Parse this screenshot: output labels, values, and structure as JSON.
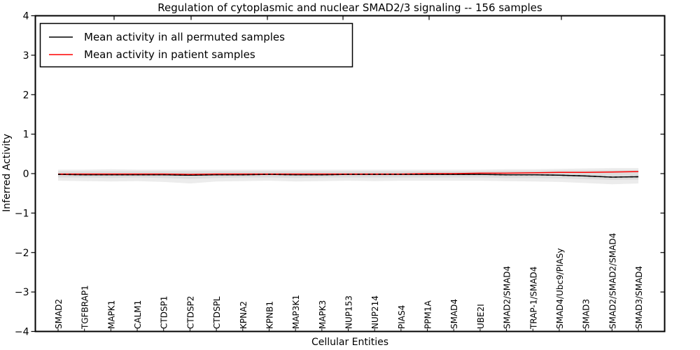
{
  "figure": {
    "title": "Regulation of cytoplasmic and nuclear SMAD2/3 signaling -- 156 samples",
    "xlabel": "Cellular Entities",
    "ylabel": "Inferred Activity",
    "background_color": "#ffffff",
    "frame_color": "#000000"
  },
  "legend": {
    "items": [
      {
        "label": "Mean activity in all permuted samples",
        "color": "#000000",
        "line_style": "solid"
      },
      {
        "label": "Mean activity in patient samples",
        "color": "#ff0000",
        "line_style": "solid"
      }
    ],
    "position": "upper left",
    "border_color": "#000000",
    "background_color": "#ffffff"
  },
  "axes": {
    "y_tick_labels": [
      "4",
      "3",
      "2",
      "1",
      "0",
      "−1",
      "−2",
      "−3",
      "−4"
    ]
  },
  "chart_data": {
    "type": "line",
    "title": "Regulation of cytoplasmic and nuclear SMAD2/3 signaling -- 156 samples",
    "xlabel": "Cellular Entities",
    "ylabel": "Inferred Activity",
    "ylim": [
      -4,
      4
    ],
    "yticks": [
      4,
      3,
      2,
      1,
      0,
      -1,
      -2,
      -3,
      -4
    ],
    "grid": false,
    "legend_position": "upper left",
    "categories": [
      "SMAD2",
      "TGFBRAP1",
      "MAPK1",
      "CALM1",
      "CTDSP1",
      "CTDSP2",
      "CTDSPL",
      "KPNA2",
      "KPNB1",
      "MAP3K1",
      "MAPK3",
      "NUP153",
      "NUP214",
      "PIAS4",
      "PPM1A",
      "SMAD4",
      "UBE2I",
      "SMAD2/SMAD4",
      "TRAP-1/SMAD4",
      "SMAD4/Ubc9/PIASy",
      "SMAD3",
      "SMAD2/SMAD2/SMAD4",
      "SMAD3/SMAD4"
    ],
    "series": [
      {
        "name": "Mean activity in all permuted samples",
        "color": "#000000",
        "values": [
          -0.02,
          -0.03,
          -0.03,
          -0.03,
          -0.03,
          -0.04,
          -0.03,
          -0.03,
          -0.02,
          -0.03,
          -0.03,
          -0.02,
          -0.02,
          -0.02,
          -0.02,
          -0.02,
          -0.02,
          -0.03,
          -0.03,
          -0.04,
          -0.06,
          -0.09,
          -0.08
        ]
      },
      {
        "name": "Mean activity in patient samples",
        "color": "#ff0000",
        "values": [
          -0.01,
          -0.01,
          -0.01,
          -0.01,
          -0.01,
          -0.02,
          -0.01,
          -0.01,
          -0.01,
          -0.01,
          -0.01,
          -0.01,
          -0.01,
          -0.01,
          0.0,
          0.0,
          0.01,
          0.01,
          0.02,
          0.03,
          0.03,
          0.04,
          0.05
        ]
      }
    ],
    "bands": [
      {
        "name": "outer-uncertainty-band",
        "color": "#ececec",
        "upper": [
          0.1,
          0.1,
          0.11,
          0.1,
          0.1,
          0.1,
          0.1,
          0.1,
          0.1,
          0.1,
          0.1,
          0.1,
          0.1,
          0.1,
          0.1,
          0.1,
          0.1,
          0.11,
          0.11,
          0.12,
          0.13,
          0.14,
          0.14
        ],
        "lower": [
          -0.18,
          -0.19,
          -0.2,
          -0.19,
          -0.21,
          -0.25,
          -0.2,
          -0.19,
          -0.18,
          -0.2,
          -0.19,
          -0.18,
          -0.19,
          -0.18,
          -0.18,
          -0.18,
          -0.18,
          -0.19,
          -0.2,
          -0.21,
          -0.24,
          -0.27,
          -0.25
        ]
      },
      {
        "name": "inner-uncertainty-band",
        "color": "#dcdcdc",
        "upper": [
          0.06,
          0.06,
          0.06,
          0.06,
          0.06,
          0.06,
          0.06,
          0.06,
          0.06,
          0.06,
          0.06,
          0.06,
          0.06,
          0.06,
          0.06,
          0.06,
          0.06,
          0.07,
          0.07,
          0.08,
          0.08,
          0.09,
          0.09
        ],
        "lower": [
          -0.1,
          -0.1,
          -0.11,
          -0.1,
          -0.11,
          -0.13,
          -0.11,
          -0.1,
          -0.1,
          -0.11,
          -0.1,
          -0.1,
          -0.1,
          -0.1,
          -0.1,
          -0.1,
          -0.1,
          -0.11,
          -0.11,
          -0.12,
          -0.14,
          -0.16,
          -0.15
        ]
      }
    ]
  }
}
